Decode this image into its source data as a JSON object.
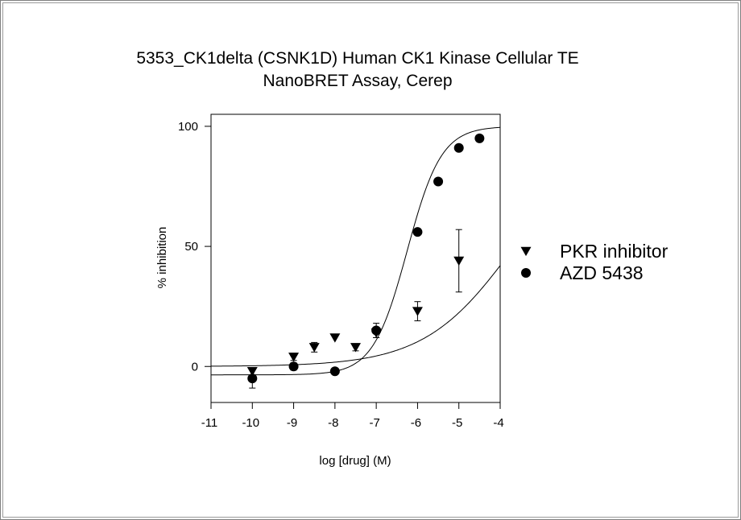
{
  "chart_data": {
    "type": "scatter",
    "title_lines": [
      "5353_CK1delta (CSNK1D) Human CK1 Kinase Cellular TE",
      "NanoBRET Assay, Cerep"
    ],
    "xlabel": "log [drug] (M)",
    "ylabel": "% inhibition",
    "xlim": [
      -11,
      -4
    ],
    "ylim": [
      -15,
      105
    ],
    "x_ticks": [
      -11,
      -10,
      -9,
      -8,
      -7,
      -6,
      -5,
      -4
    ],
    "y_ticks": [
      0,
      50,
      100
    ],
    "legend_position": "right",
    "grid": false,
    "series": [
      {
        "name": "PKR inhibitor",
        "marker": "triangle-down",
        "points": [
          {
            "x": -10,
            "y": -2
          },
          {
            "x": -9,
            "y": 4,
            "err": 1.5
          },
          {
            "x": -8.5,
            "y": 8,
            "err": 2
          },
          {
            "x": -8,
            "y": 12
          },
          {
            "x": -7.5,
            "y": 8,
            "err": 1.5
          },
          {
            "x": -7,
            "y": 14,
            "err": 2
          },
          {
            "x": -6,
            "y": 23,
            "err": 4
          },
          {
            "x": -5,
            "y": 44,
            "err": 13
          }
        ],
        "fit": {
          "bottom": 0,
          "top": 100,
          "logEC50": -3.65,
          "hill": 0.4
        }
      },
      {
        "name": "AZD 5438",
        "marker": "circle",
        "points": [
          {
            "x": -10,
            "y": -5,
            "err": 4
          },
          {
            "x": -9,
            "y": 0,
            "err": 1.5
          },
          {
            "x": -8,
            "y": -2
          },
          {
            "x": -7,
            "y": 15,
            "err": 3
          },
          {
            "x": -6,
            "y": 56
          },
          {
            "x": -5.5,
            "y": 77
          },
          {
            "x": -5,
            "y": 91
          },
          {
            "x": -4.5,
            "y": 95
          }
        ],
        "fit": {
          "bottom": -3.5,
          "top": 100,
          "logEC50": -6.25,
          "hill": 1.05
        }
      }
    ]
  }
}
